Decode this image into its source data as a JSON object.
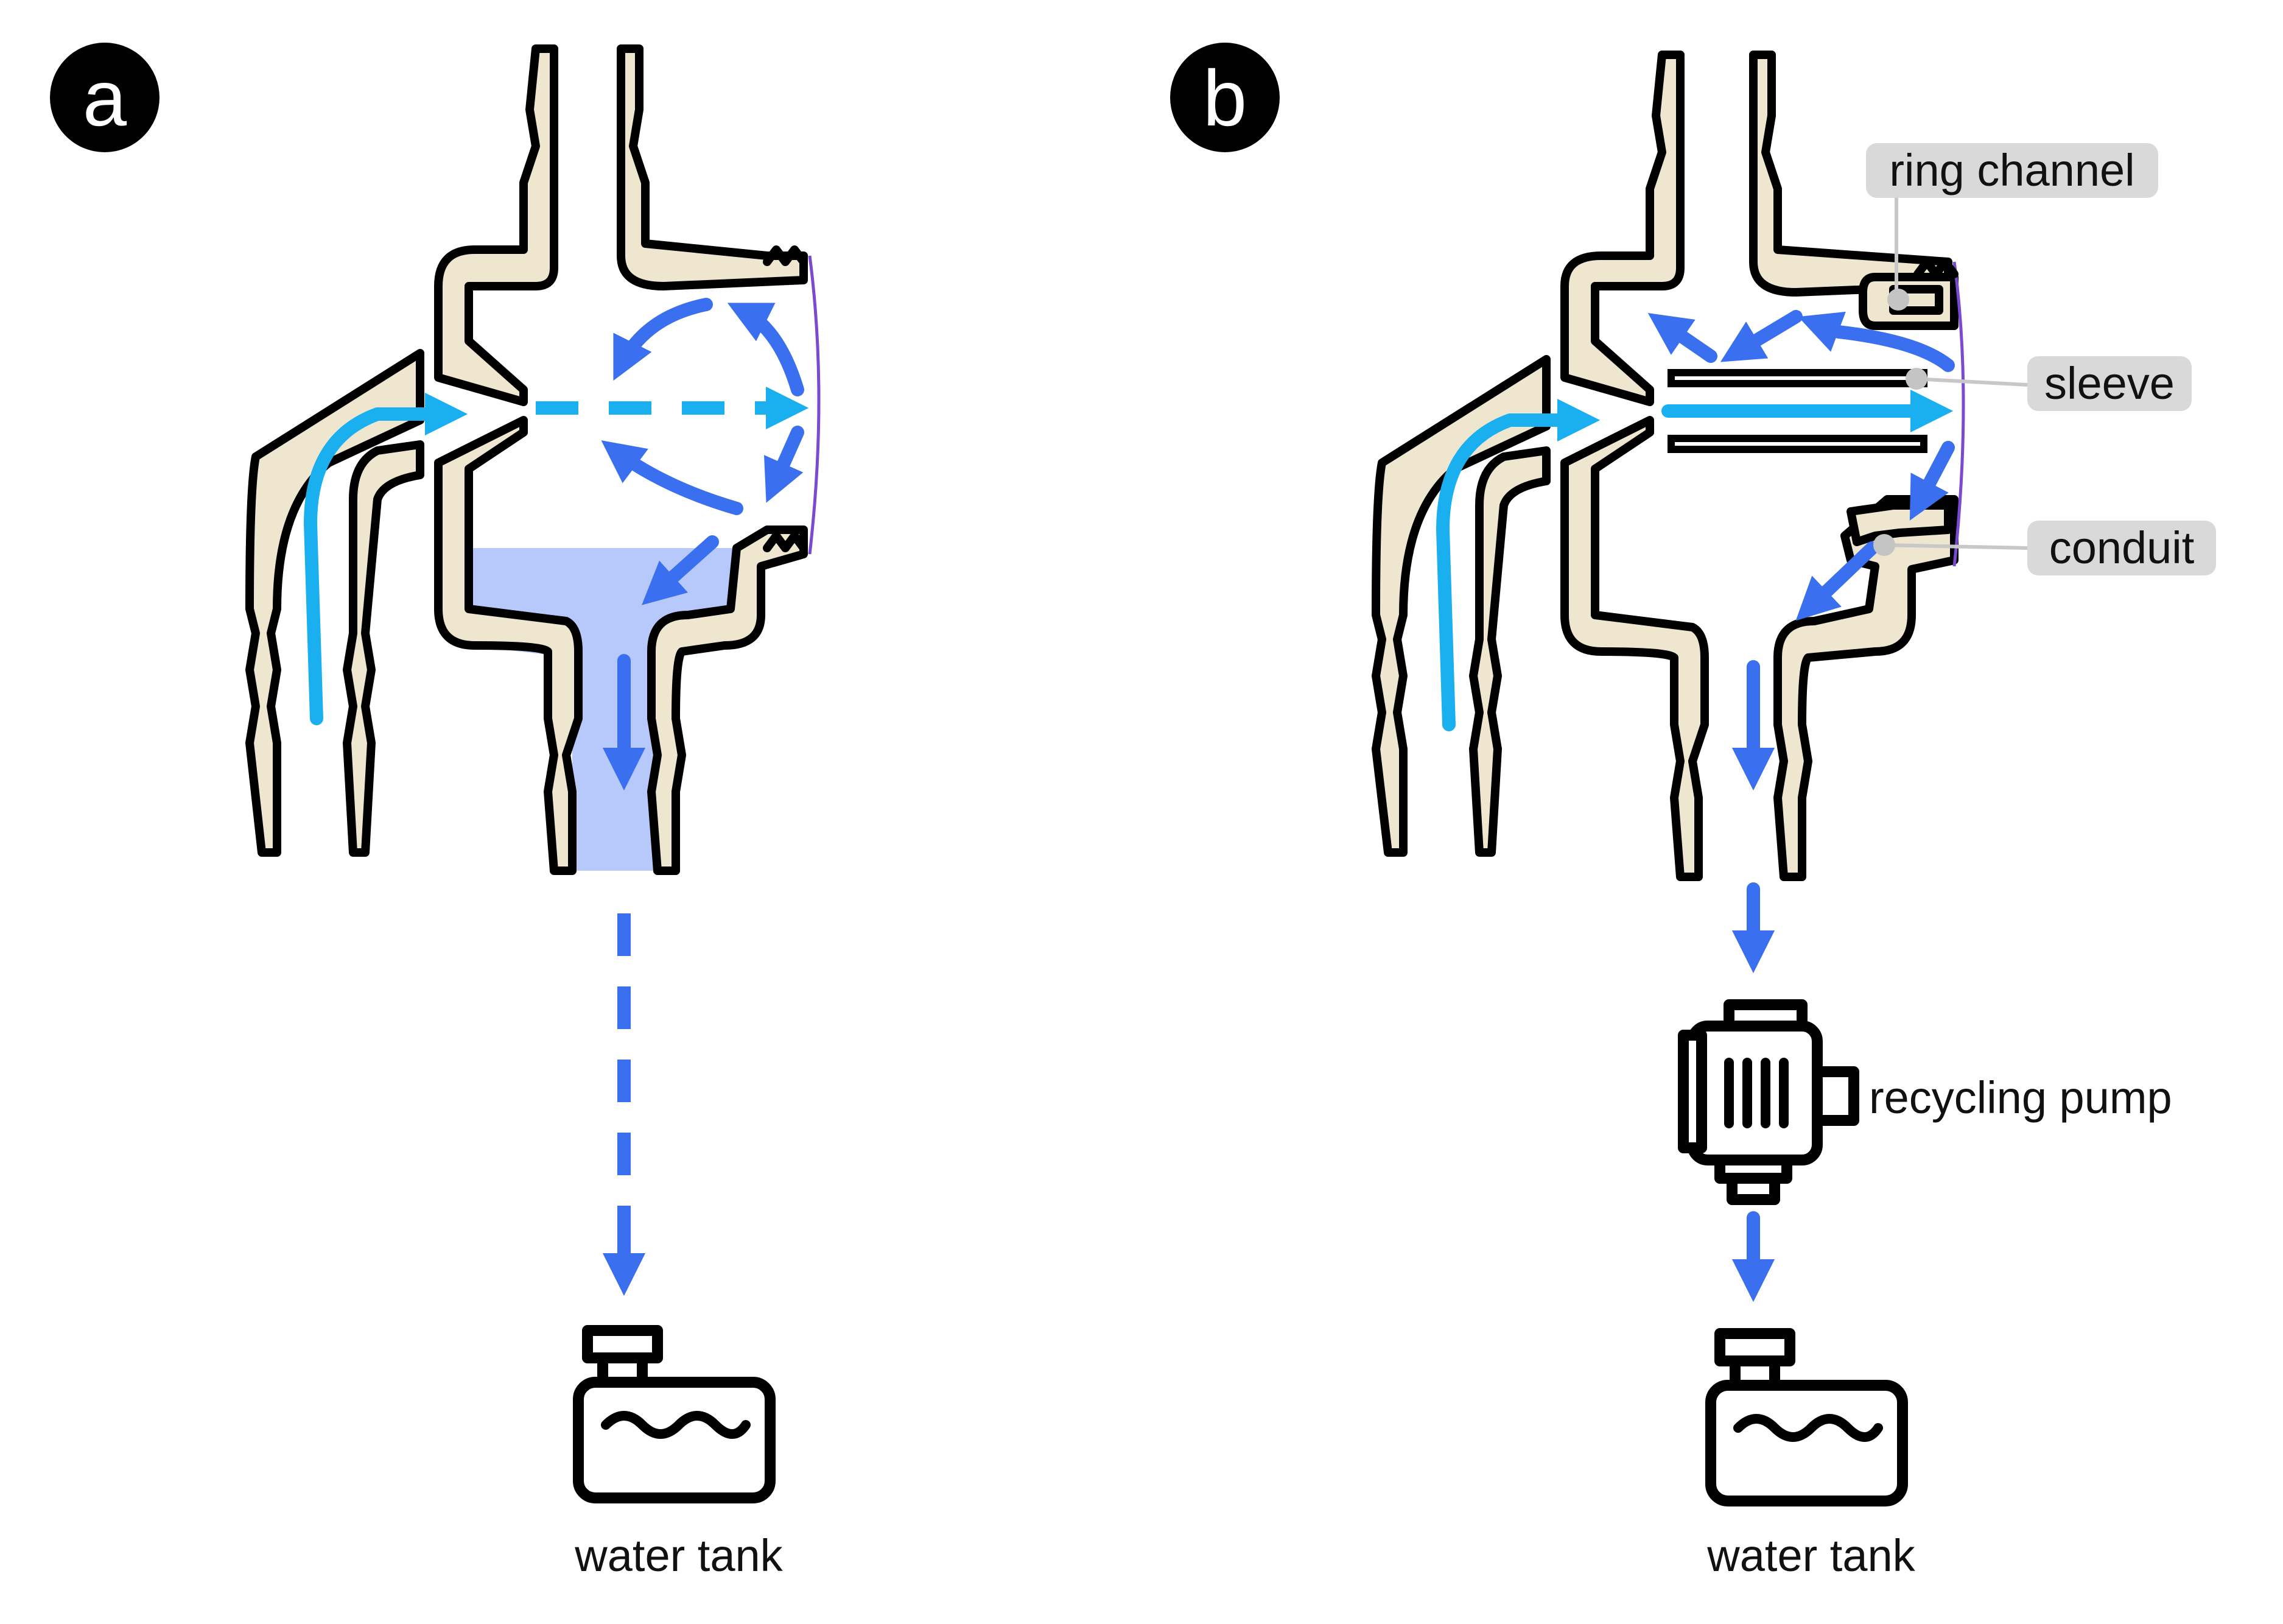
{
  "panels": {
    "a": {
      "badge": "a",
      "tank_label": "water tank"
    },
    "b": {
      "badge": "b",
      "tank_label": "water tank",
      "pump_label": "recycling pump",
      "callouts": {
        "ring_channel": "ring channel",
        "sleeve": "sleeve",
        "conduit": "conduit"
      }
    }
  },
  "colors": {
    "wall_fill": "#efe6cf",
    "inflow_arrow": "#1ab0f0",
    "water_arrow": "#3a6ff0",
    "water_pool": "#b7c9fb",
    "callout_bg": "#d9d9d9"
  },
  "icons": [
    "water-tank-icon",
    "recycling-pump-icon"
  ]
}
